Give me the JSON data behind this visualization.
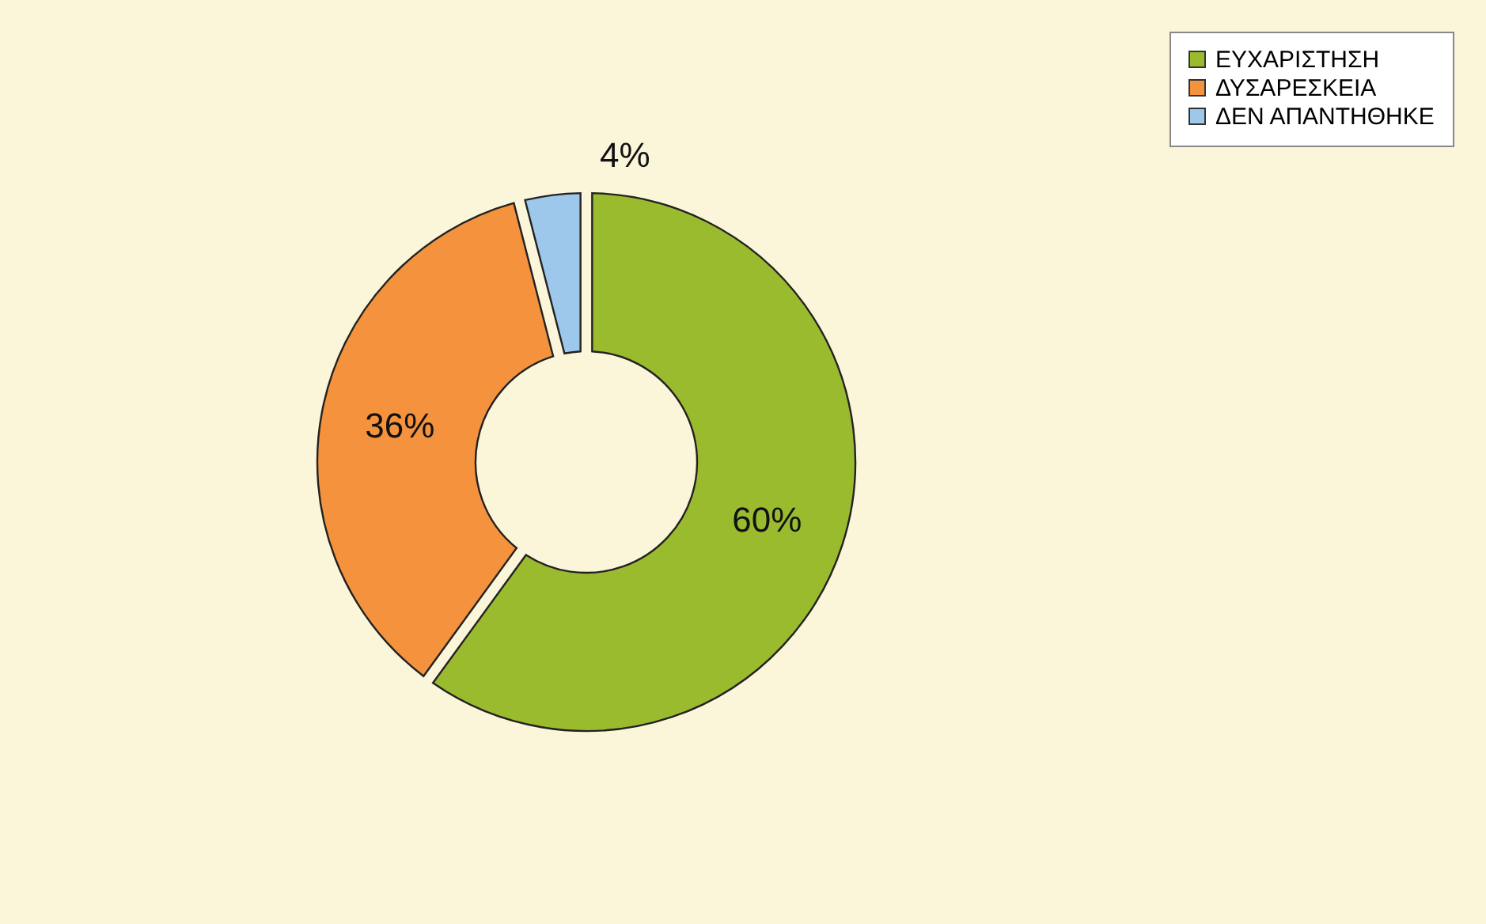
{
  "chart_data": {
    "type": "donut",
    "categories": [
      "ΕΥΧΑΡΙΣΤΗΣΗ",
      "ΔΥΣΑΡΕΣΚΕΙΑ",
      "ΔΕΝ ΑΠΑΝΤΗΘΗΚΕ"
    ],
    "values": [
      60,
      36,
      4
    ],
    "colors": [
      "#9bbb2f",
      "#f5923e",
      "#9dc8ec"
    ],
    "value_labels": [
      "60%",
      "36%",
      "4%"
    ],
    "legend": "right"
  }
}
